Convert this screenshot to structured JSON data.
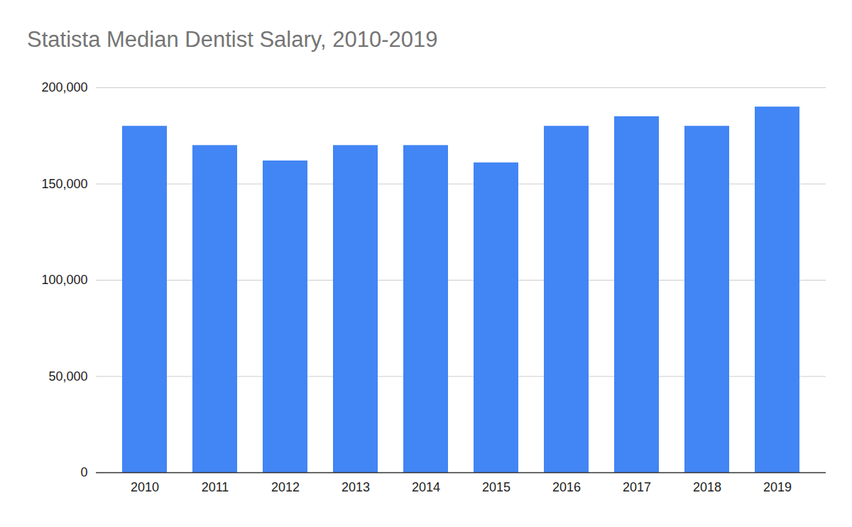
{
  "chart_data": {
    "type": "bar",
    "title": "Statista Median Dentist Salary, 2010-2019",
    "categories": [
      "2010",
      "2011",
      "2012",
      "2013",
      "2014",
      "2015",
      "2016",
      "2017",
      "2018",
      "2019"
    ],
    "values": [
      180000,
      170000,
      162000,
      170000,
      170000,
      161000,
      180000,
      185000,
      180000,
      190000
    ],
    "color": "#4285f4",
    "ylim": [
      0,
      200000
    ],
    "yticks": [
      0,
      {
        "value": 50000,
        "label": "50,000"
      },
      {
        "value": 100000,
        "label": "100,000"
      },
      {
        "value": 150000,
        "label": "150,000"
      },
      {
        "value": 200000,
        "label": "200,000"
      }
    ],
    "grid": true
  }
}
